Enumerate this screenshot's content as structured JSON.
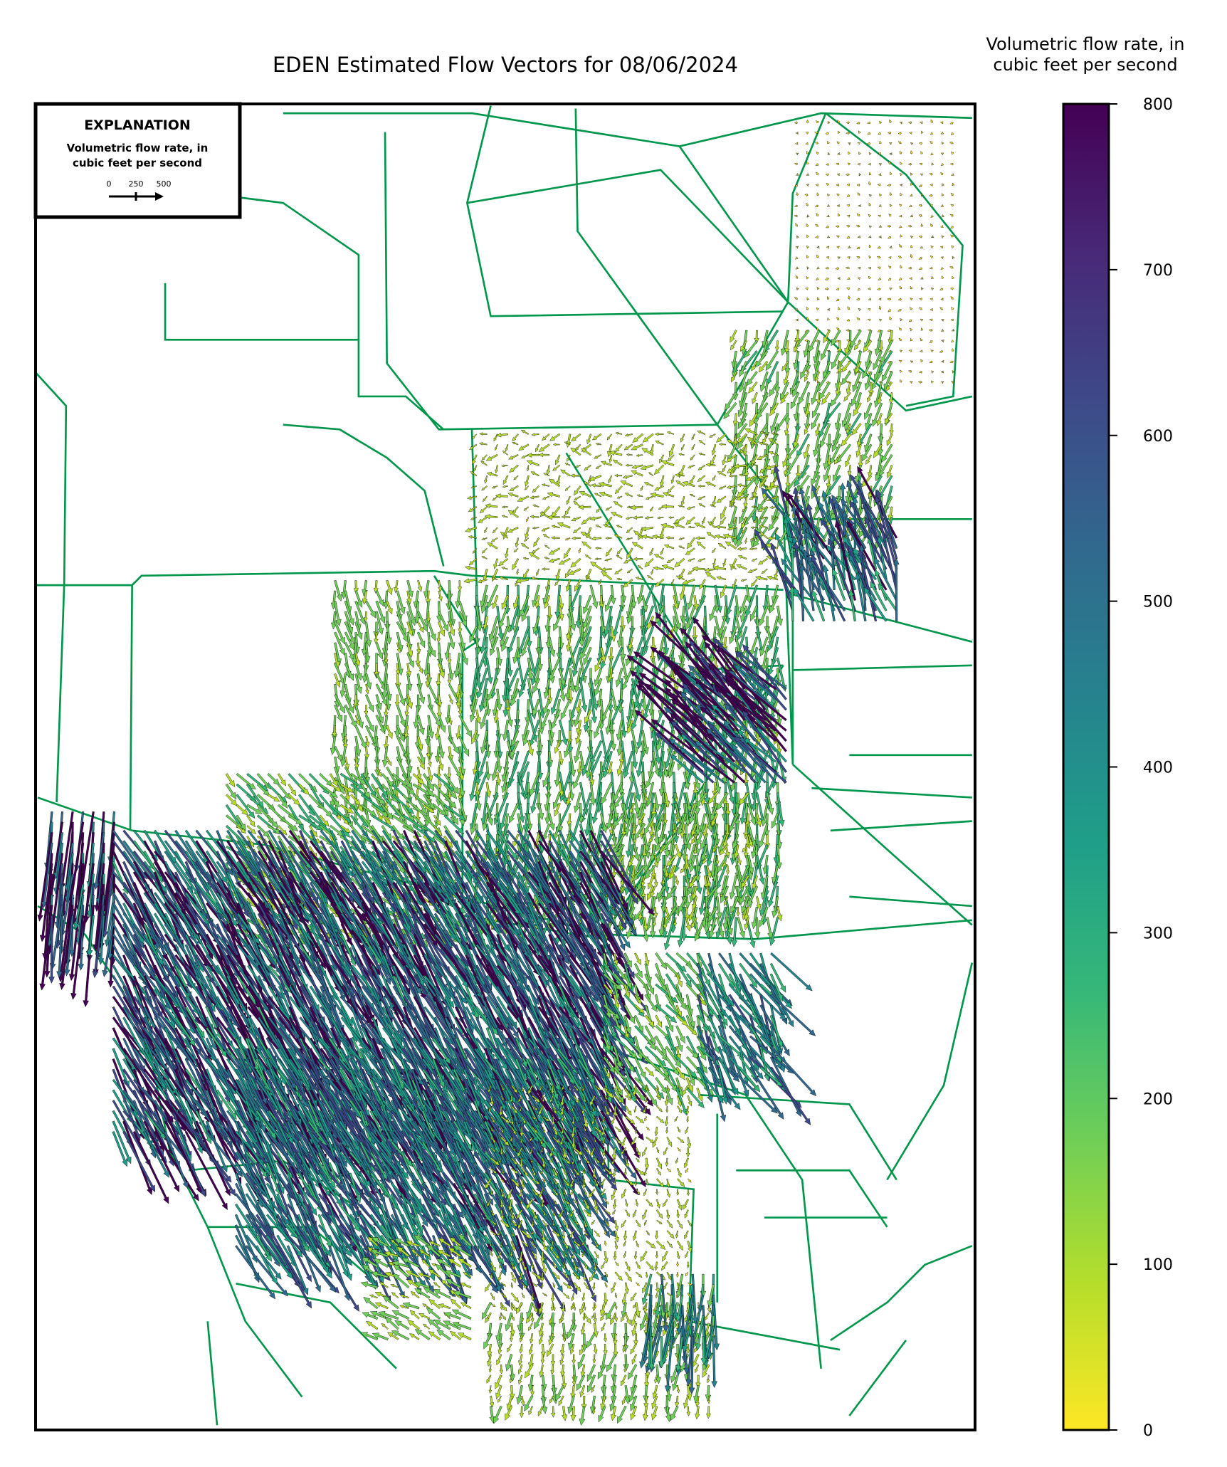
{
  "title": "EDEN Estimated Flow Vectors for 08/06/2024",
  "legend": {
    "heading": "EXPLANATION",
    "line1": "Volumetric flow rate, in",
    "line2": "cubic feet per second",
    "scale_labels": [
      "0",
      "250",
      "500"
    ]
  },
  "colorbar": {
    "title_line1": "Volumetric flow rate, in",
    "title_line2": "cubic feet per second",
    "ticks": [
      "0",
      "100",
      "200",
      "300",
      "400",
      "500",
      "600",
      "700",
      "800"
    ],
    "range": [
      0,
      800
    ],
    "colormap": "viridis (reversed)",
    "colors": [
      "#fde725",
      "#b5de2b",
      "#6ece58",
      "#35b779",
      "#1f9e89",
      "#26828e",
      "#31688e",
      "#3e4989",
      "#482878",
      "#440154"
    ]
  },
  "map": {
    "boundary_color": "#00964b",
    "frame_color": "#000000"
  }
}
